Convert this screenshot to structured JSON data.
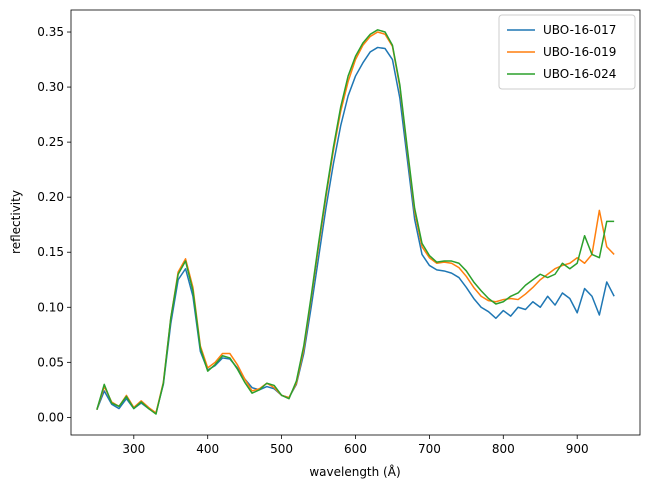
{
  "chart_data": {
    "type": "line",
    "x_label": "wavelength (Å)",
    "y_label": "reflectivity",
    "x": [
      250,
      260,
      270,
      280,
      290,
      300,
      310,
      320,
      330,
      340,
      350,
      360,
      370,
      380,
      390,
      400,
      410,
      420,
      430,
      440,
      450,
      460,
      470,
      480,
      490,
      500,
      510,
      520,
      530,
      540,
      550,
      560,
      570,
      580,
      590,
      600,
      610,
      620,
      630,
      640,
      650,
      660,
      670,
      680,
      690,
      700,
      710,
      720,
      730,
      740,
      750,
      760,
      770,
      780,
      790,
      800,
      810,
      820,
      830,
      840,
      850,
      860,
      870,
      880,
      890,
      900,
      910,
      920,
      930,
      940,
      950
    ],
    "series": [
      {
        "name": "UBO-16-017",
        "color": "#1f77b4",
        "values": [
          0.007,
          0.024,
          0.012,
          0.008,
          0.017,
          0.008,
          0.013,
          0.008,
          0.004,
          0.03,
          0.085,
          0.125,
          0.135,
          0.11,
          0.06,
          0.043,
          0.047,
          0.054,
          0.053,
          0.045,
          0.035,
          0.027,
          0.025,
          0.028,
          0.026,
          0.02,
          0.018,
          0.03,
          0.058,
          0.1,
          0.145,
          0.19,
          0.23,
          0.265,
          0.292,
          0.31,
          0.322,
          0.332,
          0.336,
          0.335,
          0.325,
          0.29,
          0.235,
          0.18,
          0.148,
          0.138,
          0.134,
          0.133,
          0.131,
          0.127,
          0.118,
          0.108,
          0.1,
          0.096,
          0.09,
          0.097,
          0.092,
          0.1,
          0.098,
          0.105,
          0.1,
          0.11,
          0.102,
          0.113,
          0.108,
          0.095,
          0.117,
          0.11,
          0.093,
          0.123,
          0.11
        ]
      },
      {
        "name": "UBO-16-019",
        "color": "#ff7f0e",
        "values": [
          0.007,
          0.028,
          0.014,
          0.01,
          0.02,
          0.009,
          0.015,
          0.009,
          0.004,
          0.032,
          0.09,
          0.132,
          0.144,
          0.118,
          0.065,
          0.045,
          0.05,
          0.058,
          0.058,
          0.048,
          0.035,
          0.024,
          0.026,
          0.031,
          0.027,
          0.02,
          0.018,
          0.031,
          0.062,
          0.108,
          0.155,
          0.2,
          0.242,
          0.278,
          0.305,
          0.325,
          0.338,
          0.346,
          0.35,
          0.348,
          0.337,
          0.3,
          0.243,
          0.187,
          0.155,
          0.145,
          0.14,
          0.141,
          0.14,
          0.136,
          0.128,
          0.118,
          0.11,
          0.106,
          0.105,
          0.107,
          0.108,
          0.107,
          0.112,
          0.118,
          0.125,
          0.13,
          0.135,
          0.138,
          0.14,
          0.145,
          0.14,
          0.148,
          0.188,
          0.155,
          0.148
        ]
      },
      {
        "name": "UBO-16-024",
        "color": "#2ca02c",
        "values": [
          0.007,
          0.03,
          0.013,
          0.01,
          0.019,
          0.008,
          0.014,
          0.008,
          0.003,
          0.031,
          0.09,
          0.13,
          0.142,
          0.115,
          0.063,
          0.042,
          0.048,
          0.056,
          0.054,
          0.044,
          0.032,
          0.022,
          0.025,
          0.031,
          0.029,
          0.02,
          0.017,
          0.033,
          0.065,
          0.11,
          0.158,
          0.203,
          0.245,
          0.282,
          0.31,
          0.328,
          0.34,
          0.348,
          0.352,
          0.35,
          0.338,
          0.302,
          0.245,
          0.19,
          0.158,
          0.147,
          0.141,
          0.142,
          0.142,
          0.14,
          0.133,
          0.123,
          0.115,
          0.108,
          0.103,
          0.105,
          0.11,
          0.113,
          0.12,
          0.125,
          0.13,
          0.127,
          0.13,
          0.14,
          0.135,
          0.14,
          0.165,
          0.148,
          0.145,
          0.178,
          0.178
        ]
      }
    ],
    "xlim": [
      215,
      985
    ],
    "xticks": [
      300,
      400,
      500,
      600,
      700,
      800,
      900
    ],
    "ylim": [
      -0.016,
      0.37
    ],
    "yticks": [
      {
        "value": 0,
        "label": "0.00"
      },
      0.05,
      {
        "value": 0.1,
        "label": "0.10"
      },
      0.15,
      {
        "value": 0.2,
        "label": "0.20"
      },
      0.25,
      {
        "value": 0.3,
        "label": "0.30"
      },
      0.35
    ],
    "legend": "upper right",
    "grid": false
  }
}
